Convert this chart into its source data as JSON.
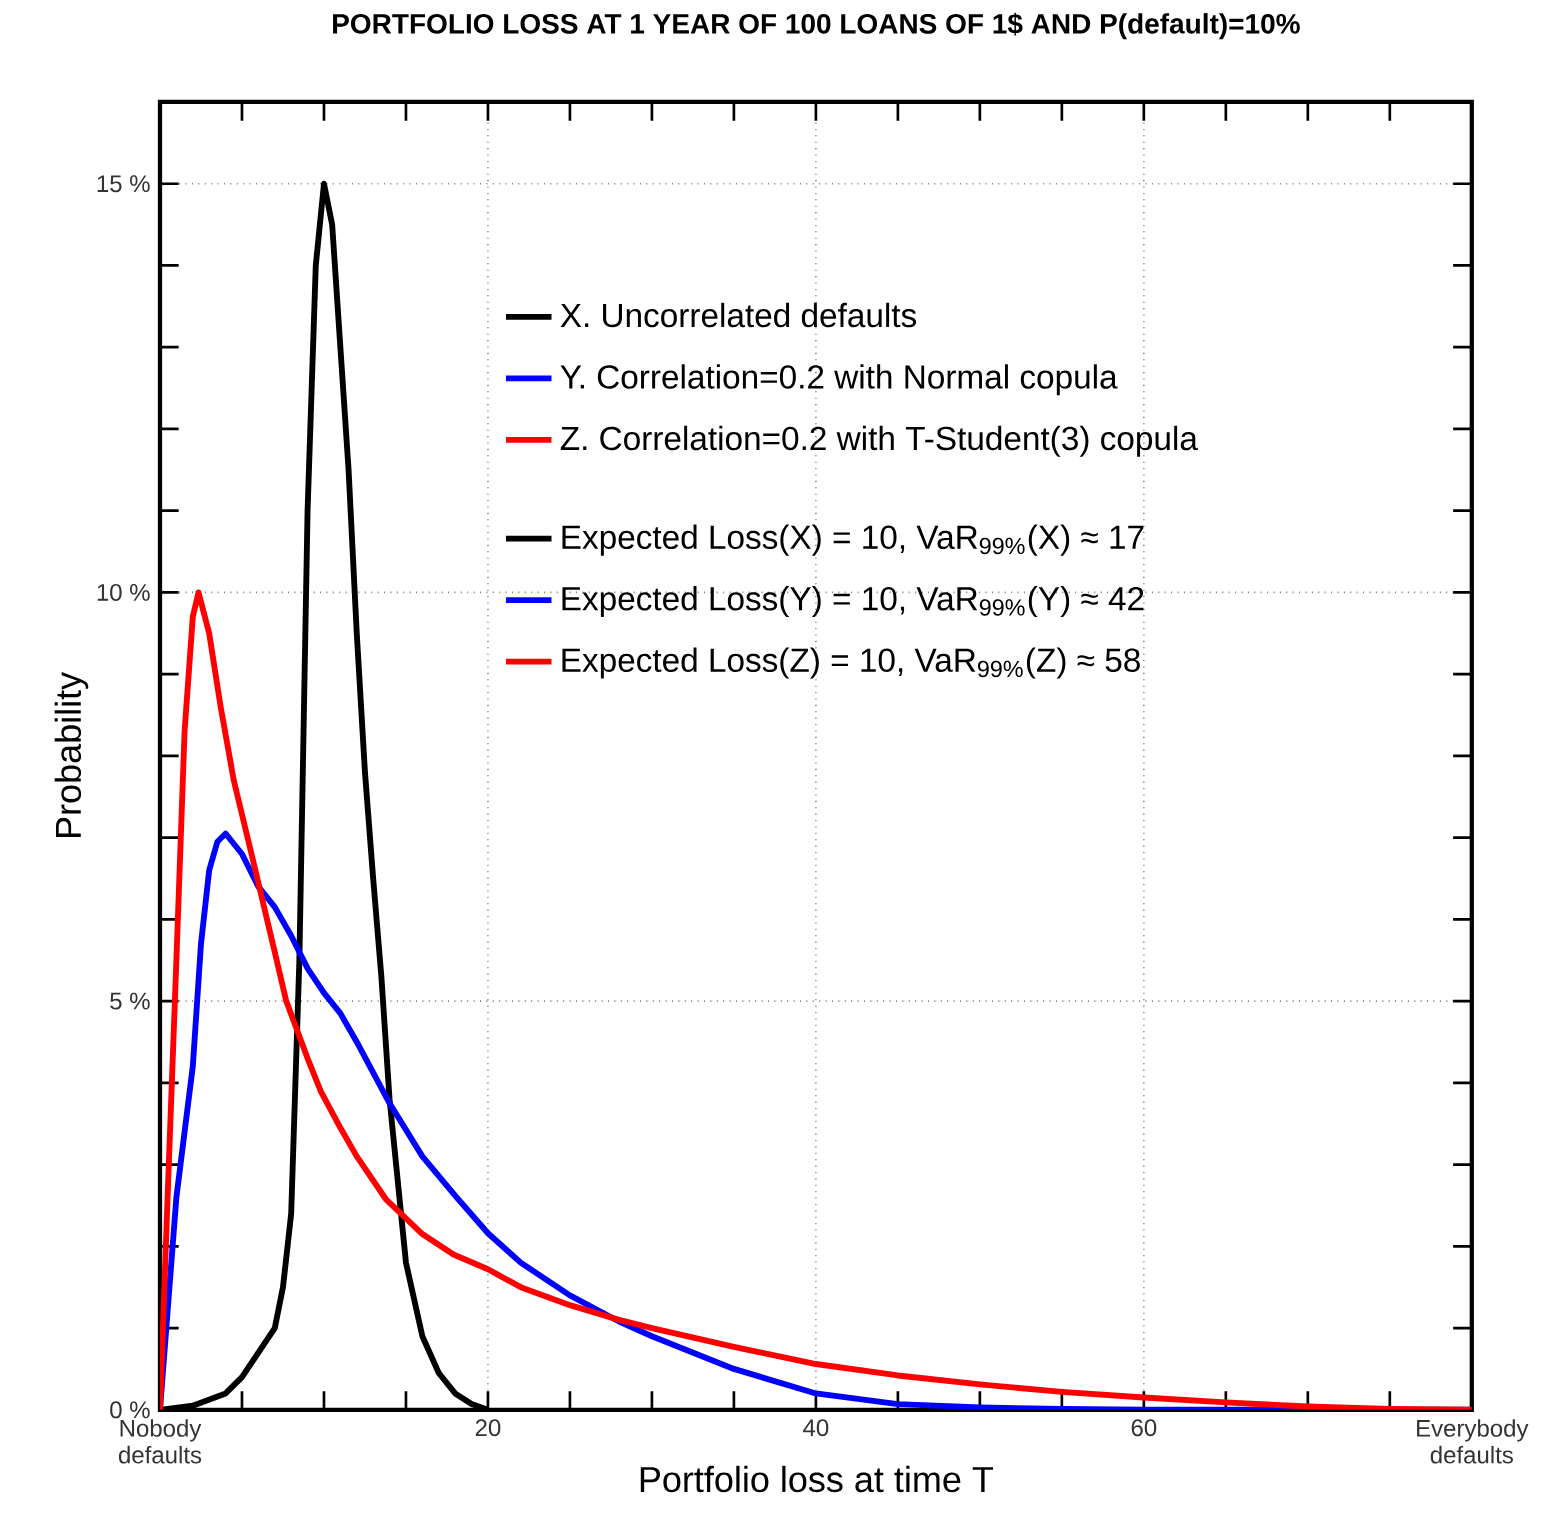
{
  "chart_data": {
    "type": "line",
    "title": "PORTFOLIO LOSS AT 1 YEAR OF 100 LOANS OF 1$ AND P(default)=10%",
    "xlabel": "Portfolio loss at time T",
    "ylabel": "Probability",
    "xlim": [
      0,
      80
    ],
    "xticks": [
      {
        "value": 0,
        "label": "Nobody defaults"
      },
      20,
      40,
      60,
      {
        "value": 80,
        "label": "Everybody defaults"
      }
    ],
    "ylim": [
      0,
      16
    ],
    "yticks": [
      {
        "value": 0,
        "label": "0 %"
      },
      {
        "value": 5,
        "label": "5 %"
      },
      {
        "value": 10,
        "label": "10 %"
      },
      {
        "value": 15,
        "label": "15 %"
      }
    ],
    "grid": true,
    "legend": "top right",
    "marker": "none",
    "line_style": "solid",
    "series": [
      {
        "name": "X. Uncorrelated defaults",
        "color": "#000000",
        "x": [
          0,
          2,
          4,
          5,
          6,
          7,
          7.5,
          8,
          8.5,
          9,
          9.5,
          10,
          10.5,
          11,
          11.5,
          12,
          12.5,
          13,
          13.5,
          14,
          15,
          16,
          17,
          18,
          19,
          20
        ],
        "values": [
          0,
          0.05,
          0.2,
          0.4,
          0.7,
          1.0,
          1.5,
          2.4,
          5.5,
          11,
          14,
          15,
          14.5,
          13,
          11.5,
          9.5,
          7.8,
          6.5,
          5.3,
          3.8,
          1.8,
          0.9,
          0.45,
          0.2,
          0.07,
          0
        ]
      },
      {
        "name": "Y. Correlation=0.2 with Normal copula",
        "color": "#0000ff",
        "x": [
          0,
          0.5,
          1,
          1.5,
          2,
          2.5,
          3,
          3.5,
          4,
          5,
          6,
          7,
          8,
          9,
          10,
          11,
          12,
          14,
          16,
          18,
          20,
          22,
          25,
          28,
          30,
          35,
          40,
          45,
          50,
          55,
          60,
          70,
          80
        ],
        "values": [
          0,
          1.3,
          2.6,
          3.4,
          4.2,
          5.7,
          6.6,
          6.95,
          7.05,
          6.8,
          6.4,
          6.15,
          5.8,
          5.4,
          5.1,
          4.85,
          4.5,
          3.75,
          3.1,
          2.62,
          2.16,
          1.8,
          1.4,
          1.08,
          0.9,
          0.5,
          0.2,
          0.07,
          0.03,
          0.01,
          0,
          0,
          0
        ]
      },
      {
        "name": "Z. Correlation=0.2 with T-Student(3) copula",
        "color": "#ff0000",
        "x": [
          0,
          0.5,
          1,
          1.5,
          2,
          2.35,
          3,
          3.7,
          4.5,
          5.7,
          7,
          7.7,
          9,
          9.8,
          11,
          12,
          13.8,
          16,
          17.9,
          20,
          22,
          25,
          28,
          30,
          35,
          40,
          45,
          50,
          55,
          60,
          65,
          70,
          75,
          80
        ],
        "values": [
          0,
          2.8,
          5.5,
          8.3,
          9.7,
          10.0,
          9.5,
          8.6,
          7.7,
          6.7,
          5.6,
          5.0,
          4.3,
          3.9,
          3.45,
          3.1,
          2.57,
          2.15,
          1.9,
          1.72,
          1.5,
          1.28,
          1.1,
          1.0,
          0.77,
          0.56,
          0.42,
          0.31,
          0.22,
          0.15,
          0.09,
          0.04,
          0.01,
          0
        ]
      }
    ],
    "annotations": [
      "Expected Loss(X) = 10, VaR$_{99%}$(X) ≈ 17",
      "Expected Loss(Y) = 10, VaR$_{99%}$(Y) ≈ 42",
      "Expected Loss(Z) = 10, VaR$_{99%}$(Z) ≈ 58"
    ]
  }
}
